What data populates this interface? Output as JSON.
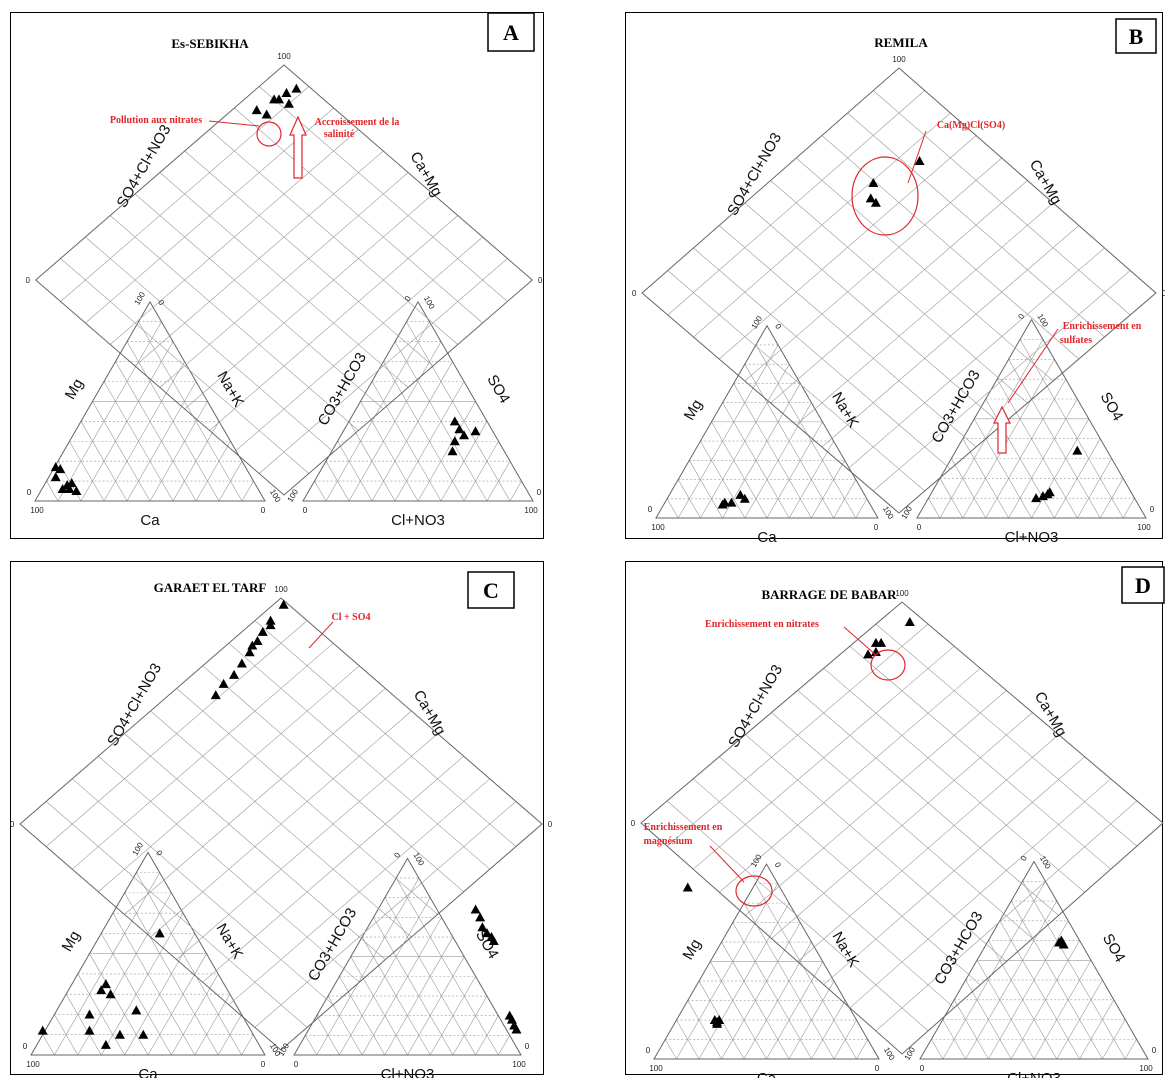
{
  "panels": [
    {
      "title": "Es-SEBIKHA",
      "letter": "A",
      "labels": {
        "diamond_left": "SO4+Cl+NO3",
        "diamond_right": "Ca+Mg",
        "cation_left": "Mg",
        "cation_right": "Na+K",
        "cation_bottom": "Ca",
        "anion_left": "CO3+HCO3",
        "anion_right": "SO4",
        "anion_bottom": "Cl+NO3"
      },
      "ticks": {
        "top": "100",
        "left": "0",
        "right": "0",
        "cat_top": "100",
        "cat_top2": "0",
        "cat_bl": "100",
        "cat_bl0": "0",
        "cat_br": "0",
        "cat_br100": "100",
        "an_top": "100",
        "an_top0": "0",
        "an_bl": "0",
        "an_bl100": "100",
        "an_br": "100",
        "an_br0": "0"
      },
      "cation_points": [
        [
          0.09,
          0.17
        ],
        [
          0.11,
          0.16
        ],
        [
          0.09,
          0.12
        ],
        [
          0.14,
          0.08
        ],
        [
          0.16,
          0.09
        ],
        [
          0.12,
          0.06
        ],
        [
          0.15,
          0.06
        ],
        [
          0.18,
          0.05
        ]
      ],
      "anion_points": [
        [
          0.66,
          0.3
        ],
        [
          0.7,
          0.33
        ],
        [
          0.75,
          0.35
        ],
        [
          0.68,
          0.36
        ],
        [
          0.65,
          0.25
        ],
        [
          0.66,
          0.4
        ]
      ],
      "diamond_points": [
        [
          0.92,
          0.97
        ],
        [
          0.93,
          0.94
        ],
        [
          0.9,
          0.92
        ],
        [
          0.93,
          0.91
        ],
        [
          0.94,
          0.9
        ],
        [
          0.95,
          0.84
        ],
        [
          0.92,
          0.85
        ]
      ],
      "annotations": [
        {
          "text": "Pollution aux nitrates"
        },
        {
          "text": "Accroissement de la"
        },
        {
          "text": "salinité"
        }
      ]
    },
    {
      "title": "REMILA",
      "letter": "B",
      "labels": {
        "diamond_left": "SO4+Cl+NO3",
        "diamond_right": "Ca+Mg",
        "cation_left": "Mg",
        "cation_right": "Na+K",
        "cation_bottom": "Ca",
        "anion_left": "CO3+HCO3",
        "anion_right": "SO4",
        "anion_bottom": "Cl+NO3"
      },
      "ticks": {
        "top": "100",
        "left": "0",
        "right": "0",
        "cat_top": "100",
        "cat_top2": "0",
        "cat_bl": "100",
        "cat_bl0": "0",
        "cat_br": "0",
        "cat_br100": "100",
        "an_top": "100",
        "an_top0": "0",
        "an_bl": "0",
        "an_bl100": "100",
        "an_br": "100",
        "an_br0": "0"
      },
      "cation_points": [
        [
          0.3,
          0.07
        ],
        [
          0.31,
          0.08
        ],
        [
          0.34,
          0.08
        ],
        [
          0.4,
          0.1
        ],
        [
          0.38,
          0.12
        ]
      ],
      "anion_points": [
        [
          0.52,
          0.1
        ],
        [
          0.55,
          0.11
        ],
        [
          0.57,
          0.12
        ],
        [
          0.58,
          0.13
        ],
        [
          0.7,
          0.34
        ]
      ],
      "diamond_points": [
        [
          0.76,
          0.84
        ],
        [
          0.8,
          0.7
        ],
        [
          0.77,
          0.66
        ],
        [
          0.75,
          0.66
        ]
      ],
      "annotations": [
        {
          "text": "Ca(Mg)Cl(SO4)"
        },
        {
          "text": "Enrichissement en"
        },
        {
          "text": "sulfates"
        }
      ]
    },
    {
      "title": "GARAET EL TARF",
      "letter": "C",
      "labels": {
        "diamond_left": "SO4+Cl+NO3",
        "diamond_right": "Ca+Mg",
        "cation_left": "Mg",
        "cation_right": "Na+K",
        "cation_bottom": "Ca",
        "anion_left": "CO3+HCO3",
        "anion_right": "SO4",
        "anion_bottom": "Cl+NO3"
      },
      "ticks": {
        "top": "100",
        "left": "0",
        "right": "0",
        "cat_top": "100",
        "cat_top2": "0",
        "cat_bl": "100",
        "cat_bl0": "0",
        "cat_br": "0",
        "cat_br100": "100",
        "an_top": "100",
        "an_top0": "0",
        "an_bl": "0",
        "an_bl100": "100",
        "an_br": "100",
        "an_br0": "0"
      },
      "cation_points": [
        [
          0.05,
          0.12
        ],
        [
          0.25,
          0.12
        ],
        [
          0.3,
          0.32
        ],
        [
          0.32,
          0.35
        ],
        [
          0.34,
          0.3
        ],
        [
          0.55,
          0.6
        ],
        [
          0.45,
          0.22
        ],
        [
          0.38,
          0.1
        ],
        [
          0.48,
          0.1
        ],
        [
          0.32,
          0.05
        ],
        [
          0.25,
          0.2
        ]
      ],
      "anion_points": [
        [
          0.8,
          0.74
        ],
        [
          0.82,
          0.7
        ],
        [
          0.83,
          0.65
        ],
        [
          0.85,
          0.62
        ],
        [
          0.87,
          0.6
        ],
        [
          0.88,
          0.58
        ],
        [
          0.95,
          0.2
        ],
        [
          0.96,
          0.18
        ],
        [
          0.97,
          0.15
        ],
        [
          0.98,
          0.13
        ]
      ],
      "diamond_points": [
        [
          0.98,
          0.99
        ],
        [
          0.97,
          0.93
        ],
        [
          0.96,
          0.92
        ],
        [
          0.96,
          0.89
        ],
        [
          0.95,
          0.86
        ],
        [
          0.95,
          0.84
        ],
        [
          0.94,
          0.82
        ],
        [
          0.93,
          0.78
        ],
        [
          0.92,
          0.74
        ],
        [
          0.92,
          0.7
        ],
        [
          0.91,
          0.66
        ]
      ],
      "annotations": [
        {
          "text": "Cl + SO4"
        }
      ]
    },
    {
      "title": "BARRAGE DE BABAR",
      "letter": "D",
      "labels": {
        "diamond_left": "SO4+Cl+NO3",
        "diamond_right": "Ca+Mg",
        "cation_left": "Mg",
        "cation_right": "Na+K",
        "cation_bottom": "Ca",
        "anion_left": "CO3+HCO3",
        "anion_right": "SO4",
        "anion_bottom": "Cl+NO3"
      },
      "ticks": {
        "top": "100",
        "left": "0",
        "right": "0",
        "cat_top": "100",
        "cat_top2": "0",
        "cat_bl": "100",
        "cat_bl0": "0",
        "cat_br": "0",
        "cat_br100": "100",
        "an_top": "100",
        "an_top0": "0",
        "an_bl": "0",
        "an_bl100": "100",
        "an_br": "100",
        "an_br0": "0"
      },
      "cation_points": [
        [
          0.15,
          0.88
        ],
        [
          0.27,
          0.2
        ],
        [
          0.28,
          0.19
        ],
        [
          0.29,
          0.2
        ],
        [
          0.28,
          0.18
        ]
      ],
      "anion_points": [
        [
          0.62,
          0.6
        ],
        [
          0.63,
          0.58
        ],
        [
          0.61,
          0.59
        ]
      ],
      "diamond_points": [
        [
          0.92,
          0.95
        ],
        [
          0.93,
          0.85
        ],
        [
          0.94,
          0.84
        ],
        [
          0.92,
          0.82
        ],
        [
          0.93,
          0.8
        ]
      ],
      "annotations": [
        {
          "text": "Enrichissement en nitrates"
        },
        {
          "text": "Enrichissement en"
        },
        {
          "text": "magnésium"
        }
      ]
    }
  ]
}
